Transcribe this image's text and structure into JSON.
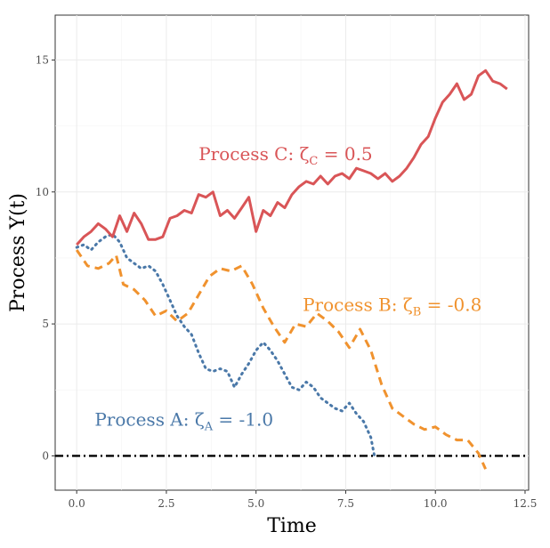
{
  "chart_data": {
    "type": "line",
    "title": "",
    "xlabel": "Time",
    "ylabel": "Process Y(t)",
    "xlim": [
      -0.6,
      12.6
    ],
    "ylim": [
      -1.3,
      16.7
    ],
    "x_ticks": [
      0,
      2.5,
      5,
      7.5,
      10,
      12.5
    ],
    "x_tick_labels": [
      "0.0",
      "2.5",
      "5.0",
      "7.5",
      "10.0",
      "12.5"
    ],
    "y_ticks": [
      0,
      5,
      10,
      15
    ],
    "y_tick_labels": [
      "0",
      "5",
      "10",
      "15"
    ],
    "grid": true,
    "reference_line": {
      "y": 0,
      "style": "dot-dash",
      "color": "#000000"
    },
    "series": [
      {
        "id": "A",
        "color": "#4A78A8",
        "dash": "dotted",
        "x": [
          0.0,
          0.2,
          0.4,
          0.6,
          0.8,
          1.0,
          1.2,
          1.4,
          1.6,
          1.8,
          2.0,
          2.2,
          2.4,
          2.6,
          2.8,
          3.0,
          3.2,
          3.4,
          3.6,
          3.8,
          4.0,
          4.2,
          4.4,
          4.6,
          4.8,
          5.0,
          5.2,
          5.4,
          5.6,
          5.8,
          6.0,
          6.2,
          6.4,
          6.6,
          6.8,
          7.0,
          7.2,
          7.4,
          7.6,
          7.8,
          8.0,
          8.2,
          8.3
        ],
        "y": [
          7.9,
          8.0,
          7.8,
          8.1,
          8.3,
          8.4,
          8.1,
          7.5,
          7.3,
          7.1,
          7.2,
          7.0,
          6.5,
          5.9,
          5.3,
          4.9,
          4.6,
          3.9,
          3.3,
          3.2,
          3.3,
          3.2,
          2.6,
          3.1,
          3.5,
          4.0,
          4.3,
          4.0,
          3.6,
          3.1,
          2.6,
          2.5,
          2.8,
          2.6,
          2.2,
          2.0,
          1.8,
          1.7,
          2.0,
          1.6,
          1.3,
          0.7,
          0.0
        ]
      },
      {
        "id": "B",
        "color": "#F0922E",
        "dash": "dashed",
        "x": [
          0.0,
          0.3,
          0.6,
          0.9,
          1.1,
          1.3,
          1.6,
          1.9,
          2.2,
          2.5,
          2.8,
          3.1,
          3.4,
          3.7,
          4.0,
          4.3,
          4.6,
          4.9,
          5.2,
          5.5,
          5.8,
          6.1,
          6.4,
          6.7,
          7.0,
          7.3,
          7.6,
          7.9,
          8.2,
          8.5,
          8.8,
          9.1,
          9.4,
          9.7,
          10.0,
          10.3,
          10.6,
          10.9,
          11.2,
          11.4
        ],
        "y": [
          7.8,
          7.2,
          7.1,
          7.3,
          7.6,
          6.5,
          6.3,
          5.9,
          5.3,
          5.5,
          5.1,
          5.4,
          6.1,
          6.8,
          7.1,
          7.0,
          7.2,
          6.5,
          5.6,
          4.9,
          4.3,
          5.0,
          4.9,
          5.4,
          5.1,
          4.7,
          4.1,
          4.8,
          4.0,
          2.7,
          1.8,
          1.5,
          1.2,
          1.0,
          1.1,
          0.8,
          0.6,
          0.6,
          0.1,
          -0.5
        ]
      },
      {
        "id": "C",
        "color": "#D95557",
        "dash": "solid",
        "x": [
          0.0,
          0.2,
          0.4,
          0.6,
          0.8,
          1.0,
          1.2,
          1.4,
          1.6,
          1.8,
          2.0,
          2.2,
          2.4,
          2.6,
          2.8,
          3.0,
          3.2,
          3.4,
          3.6,
          3.8,
          4.0,
          4.2,
          4.4,
          4.6,
          4.8,
          5.0,
          5.2,
          5.4,
          5.6,
          5.8,
          6.0,
          6.2,
          6.4,
          6.6,
          6.8,
          7.0,
          7.2,
          7.4,
          7.6,
          7.8,
          8.0,
          8.2,
          8.4,
          8.6,
          8.8,
          9.0,
          9.2,
          9.4,
          9.6,
          9.8,
          10.0,
          10.2,
          10.4,
          10.6,
          10.8,
          11.0,
          11.2,
          11.4,
          11.6,
          11.8,
          12.0
        ],
        "y": [
          8.0,
          8.3,
          8.5,
          8.8,
          8.6,
          8.3,
          9.1,
          8.5,
          9.2,
          8.8,
          8.2,
          8.2,
          8.3,
          9.0,
          9.1,
          9.3,
          9.2,
          9.9,
          9.8,
          10.0,
          9.1,
          9.3,
          9.0,
          9.4,
          9.8,
          8.5,
          9.3,
          9.1,
          9.6,
          9.4,
          9.9,
          10.2,
          10.4,
          10.3,
          10.6,
          10.3,
          10.6,
          10.7,
          10.5,
          10.9,
          10.8,
          10.7,
          10.5,
          10.7,
          10.4,
          10.6,
          10.9,
          11.3,
          11.8,
          12.1,
          12.8,
          13.4,
          13.7,
          14.1,
          13.5,
          13.7,
          14.4,
          14.6,
          14.2,
          14.1,
          13.9
        ]
      }
    ],
    "annotations": [
      {
        "id": "C",
        "text": "Process C: ζ",
        "sub": "C",
        "tail": " = 0.5",
        "color": "#D95557",
        "x": 3.4,
        "y": 11.2
      },
      {
        "id": "B",
        "text": "Process B: ζ",
        "sub": "B",
        "tail": " = -0.8",
        "color": "#F0922E",
        "x": 6.3,
        "y": 5.5
      },
      {
        "id": "A",
        "text": "Process A: ζ",
        "sub": "A",
        "tail": " = -1.0",
        "color": "#4A78A8",
        "x": 0.5,
        "y": 1.15
      }
    ]
  }
}
